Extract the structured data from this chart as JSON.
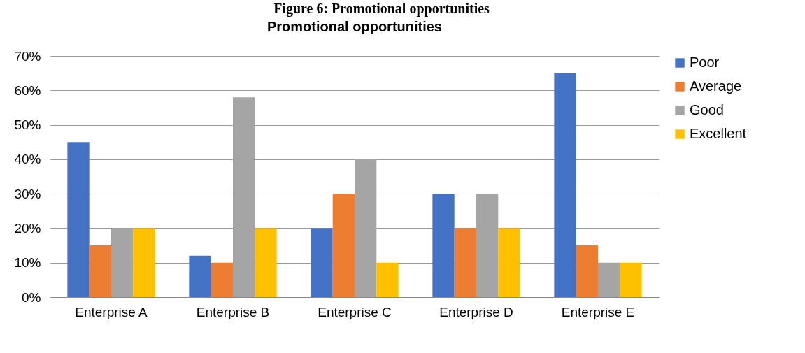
{
  "chart_data": {
    "type": "bar",
    "title": "Promotional opportunities",
    "annotations": [
      "Figure 6: Promotional opportunities"
    ],
    "categories": [
      "Enterprise A",
      "Enterprise B",
      "Enterprise C",
      "Enterprise D",
      "Enterprise E"
    ],
    "series": [
      {
        "name": "Poor",
        "color": "#4472c4",
        "values": [
          45,
          12,
          20,
          30,
          65
        ]
      },
      {
        "name": "Average",
        "color": "#ed7d31",
        "values": [
          15,
          10,
          30,
          20,
          15
        ]
      },
      {
        "name": "Good",
        "color": "#a5a5a5",
        "values": [
          20,
          58,
          40,
          30,
          10
        ]
      },
      {
        "name": "Excellent",
        "color": "#ffc000",
        "values": [
          20,
          20,
          10,
          20,
          10
        ]
      }
    ],
    "ylim": [
      0,
      70
    ],
    "yticks": [
      {
        "value": 0,
        "label": "0%"
      },
      {
        "value": 10,
        "label": "10%"
      },
      {
        "value": 20,
        "label": "20%"
      },
      {
        "value": 30,
        "label": "30%"
      },
      {
        "value": 40,
        "label": "40%"
      },
      {
        "value": 50,
        "label": "50%"
      },
      {
        "value": 60,
        "label": "60%"
      },
      {
        "value": 70,
        "label": "70%"
      }
    ],
    "grid": "y",
    "legend": "right"
  }
}
